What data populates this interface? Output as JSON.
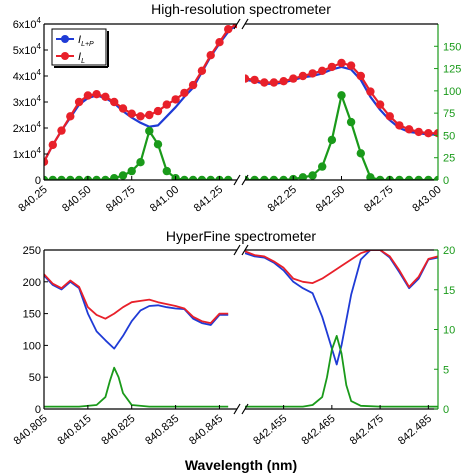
{
  "chart_data": [
    {
      "type": "line",
      "title": "High-resolution spectrometer",
      "xlabel": "",
      "ylabel": "",
      "y2label": "",
      "grid": false,
      "legend_position": "top-left",
      "legend": [
        {
          "label": "I",
          "sub": "L+P",
          "color": "#1f3bd6",
          "marker": "circle"
        },
        {
          "label": "I",
          "sub": "L",
          "color": "#e8202a",
          "marker": "circle"
        }
      ],
      "ylim": [
        0,
        60000
      ],
      "y2lim": [
        0,
        175
      ],
      "y_ticks": [
        {
          "v": 0,
          "label": "0"
        },
        {
          "v": 10000,
          "label": "1x10",
          "exp": "4"
        },
        {
          "v": 20000,
          "label": "2x10",
          "exp": "4"
        },
        {
          "v": 30000,
          "label": "3x10",
          "exp": "4"
        },
        {
          "v": 40000,
          "label": "4x10",
          "exp": "4"
        },
        {
          "v": 50000,
          "label": "5x10",
          "exp": "4"
        },
        {
          "v": 60000,
          "label": "6x10",
          "exp": "4"
        }
      ],
      "y2_ticks": [
        0,
        25,
        50,
        75,
        100,
        125,
        150
      ],
      "segments": [
        {
          "xlim": [
            840.25,
            841.35
          ],
          "x_ticks": [
            "840.25",
            "840.50",
            "840.75",
            "841.00",
            "841.25"
          ],
          "x_tick_values": [
            840.25,
            840.5,
            840.75,
            841.0,
            841.25
          ],
          "series": [
            {
              "name": "I_L+P",
              "color": "#1f3bd6",
              "axis": "left",
              "marker": "none",
              "x": [
                840.25,
                840.3,
                840.35,
                840.4,
                840.45,
                840.5,
                840.55,
                840.6,
                840.65,
                840.7,
                840.75,
                840.8,
                840.85,
                840.9,
                840.95,
                841.0,
                841.05,
                841.1,
                841.15,
                841.2,
                841.25,
                841.3,
                841.35
              ],
              "y": [
                7000,
                13500,
                19000,
                24000,
                29000,
                31500,
                32500,
                31500,
                29500,
                26500,
                24000,
                22000,
                20500,
                21000,
                24500,
                28000,
                32000,
                35500,
                41500,
                47500,
                52500,
                57000,
                60000
              ]
            },
            {
              "name": "I_L",
              "color": "#e8202a",
              "axis": "left",
              "marker": "circle",
              "x": [
                840.25,
                840.3,
                840.35,
                840.4,
                840.45,
                840.5,
                840.55,
                840.6,
                840.65,
                840.7,
                840.75,
                840.8,
                840.85,
                840.9,
                840.95,
                841.0,
                841.05,
                841.1,
                841.15,
                841.2,
                841.25,
                841.3,
                841.35
              ],
              "y": [
                7000,
                13500,
                19000,
                24500,
                30000,
                32500,
                33000,
                32000,
                30000,
                27500,
                25500,
                24500,
                25000,
                26500,
                29000,
                31000,
                33500,
                36500,
                42000,
                48000,
                53000,
                58000,
                60000
              ]
            },
            {
              "name": "",
              "color": "#1a9a1a",
              "axis": "right",
              "marker": "circle",
              "x": [
                840.25,
                840.3,
                840.35,
                840.4,
                840.45,
                840.5,
                840.55,
                840.6,
                840.65,
                840.7,
                840.75,
                840.8,
                840.85,
                840.9,
                840.95,
                841.0,
                841.05,
                841.1,
                841.15,
                841.2,
                841.25,
                841.3
              ],
              "y": [
                0,
                0,
                0,
                0,
                0,
                0,
                0,
                0,
                2,
                5,
                10,
                20,
                55,
                40,
                10,
                2,
                0,
                0,
                0,
                0,
                0,
                0
              ]
            }
          ]
        },
        {
          "xlim": [
            842.0,
            843.0
          ],
          "x_ticks": [
            "842.25",
            "842.50",
            "842.75",
            "843.00"
          ],
          "x_tick_values": [
            842.25,
            842.5,
            842.75,
            843.0
          ],
          "series": [
            {
              "name": "I_L+P",
              "color": "#1f3bd6",
              "axis": "left",
              "marker": "none",
              "x": [
                842.0,
                842.05,
                842.1,
                842.15,
                842.2,
                842.25,
                842.3,
                842.35,
                842.4,
                842.45,
                842.5,
                842.55,
                842.6,
                842.65,
                842.7,
                842.75,
                842.8,
                842.85,
                842.9,
                842.95,
                843.0
              ],
              "y": [
                38500,
                38000,
                37000,
                37000,
                37500,
                38500,
                39500,
                40000,
                41000,
                42500,
                43500,
                42500,
                38500,
                32000,
                27000,
                23000,
                20000,
                18500,
                18000,
                17500,
                17500
              ]
            },
            {
              "name": "I_L",
              "color": "#e8202a",
              "axis": "left",
              "marker": "circle",
              "x": [
                842.0,
                842.05,
                842.1,
                842.15,
                842.2,
                842.25,
                842.3,
                842.35,
                842.4,
                842.45,
                842.5,
                842.55,
                842.6,
                842.65,
                842.7,
                842.75,
                842.8,
                842.85,
                842.9,
                842.95,
                843.0
              ],
              "y": [
                39000,
                38500,
                37500,
                37500,
                38000,
                39000,
                40000,
                41000,
                42000,
                43500,
                45000,
                44000,
                40000,
                34000,
                29000,
                24500,
                21000,
                19500,
                18500,
                18000,
                18000
              ]
            },
            {
              "name": "",
              "color": "#1a9a1a",
              "axis": "right",
              "marker": "circle",
              "x": [
                842.0,
                842.05,
                842.1,
                842.15,
                842.2,
                842.25,
                842.3,
                842.35,
                842.4,
                842.45,
                842.5,
                842.55,
                842.6,
                842.65,
                842.7,
                842.75,
                842.8,
                842.85,
                842.9,
                842.95,
                843.0
              ],
              "y": [
                0,
                0,
                0,
                0,
                0,
                1,
                3,
                5,
                15,
                45,
                95,
                65,
                30,
                3,
                0,
                0,
                0,
                0,
                0,
                0,
                0
              ]
            }
          ]
        }
      ]
    },
    {
      "type": "line",
      "title": "HyperFine spectrometer",
      "xlabel": "Wavelength (nm)",
      "ylabel": "",
      "y2label": "",
      "grid": false,
      "ylim": [
        0,
        250
      ],
      "y2lim": [
        0,
        20
      ],
      "y_ticks": [
        {
          "v": 0,
          "label": "0"
        },
        {
          "v": 50,
          "label": "50"
        },
        {
          "v": 100,
          "label": "100"
        },
        {
          "v": 150,
          "label": "150"
        },
        {
          "v": 200,
          "label": "200"
        },
        {
          "v": 250,
          "label": "250"
        }
      ],
      "y2_ticks": [
        0,
        5,
        10,
        15,
        20
      ],
      "segments": [
        {
          "xlim": [
            840.805,
            840.849
          ],
          "x_ticks": [
            "840.805",
            "840.815",
            "840.825",
            "840.835",
            "840.845"
          ],
          "x_tick_values": [
            840.805,
            840.815,
            840.825,
            840.835,
            840.845
          ],
          "series": [
            {
              "name": "I_L+P",
              "color": "#1f3bd6",
              "axis": "left",
              "marker": "none",
              "x": [
                840.805,
                840.807,
                840.809,
                840.811,
                840.813,
                840.815,
                840.817,
                840.819,
                840.821,
                840.823,
                840.825,
                840.827,
                840.829,
                840.831,
                840.833,
                840.835,
                840.837,
                840.839,
                840.841,
                840.843,
                840.845,
                840.847
              ],
              "y": [
                210,
                195,
                188,
                200,
                190,
                150,
                122,
                108,
                95,
                115,
                138,
                155,
                162,
                163,
                160,
                158,
                157,
                142,
                135,
                132,
                148,
                148
              ]
            },
            {
              "name": "I_L",
              "color": "#e8202a",
              "axis": "left",
              "marker": "none",
              "x": [
                840.805,
                840.807,
                840.809,
                840.811,
                840.813,
                840.815,
                840.817,
                840.819,
                840.821,
                840.823,
                840.825,
                840.827,
                840.829,
                840.831,
                840.833,
                840.835,
                840.837,
                840.839,
                840.841,
                840.843,
                840.845,
                840.847
              ],
              "y": [
                212,
                197,
                190,
                202,
                192,
                160,
                148,
                142,
                150,
                160,
                168,
                170,
                172,
                168,
                165,
                162,
                158,
                145,
                138,
                135,
                150,
                150
              ]
            },
            {
              "name": "",
              "color": "#1a9a1a",
              "axis": "right",
              "marker": "none",
              "x": [
                840.805,
                840.809,
                840.813,
                840.817,
                840.819,
                840.82,
                840.821,
                840.822,
                840.823,
                840.825,
                840.829,
                840.833,
                840.837,
                840.841,
                840.845,
                840.847
              ],
              "y": [
                0.3,
                0.3,
                0.3,
                0.5,
                1.5,
                3.5,
                5.2,
                4.0,
                2.0,
                0.5,
                0.3,
                0.3,
                0.3,
                0.3,
                0.3,
                0.3
              ]
            }
          ]
        },
        {
          "xlim": [
            842.447,
            842.487
          ],
          "x_ticks": [
            "842.455",
            "842.465",
            "842.475",
            "842.485"
          ],
          "x_tick_values": [
            842.455,
            842.465,
            842.475,
            842.485
          ],
          "series": [
            {
              "name": "I_L+P",
              "color": "#1f3bd6",
              "axis": "left",
              "marker": "none",
              "x": [
                842.447,
                842.449,
                842.451,
                842.453,
                842.455,
                842.457,
                842.459,
                842.461,
                842.463,
                842.465,
                842.466,
                842.467,
                842.469,
                842.471,
                842.473,
                842.475,
                842.477,
                842.479,
                842.481,
                842.483,
                842.485,
                842.487
              ],
              "y": [
                245,
                240,
                238,
                230,
                218,
                200,
                190,
                182,
                145,
                95,
                70,
                100,
                180,
                235,
                250,
                250,
                238,
                215,
                190,
                205,
                235,
                238
              ]
            },
            {
              "name": "I_L",
              "color": "#e8202a",
              "axis": "left",
              "marker": "none",
              "x": [
                842.447,
                842.449,
                842.451,
                842.453,
                842.455,
                842.457,
                842.459,
                842.461,
                842.463,
                842.465,
                842.467,
                842.469,
                842.471,
                842.473,
                842.475,
                842.477,
                842.479,
                842.481,
                842.483,
                842.485,
                842.487
              ],
              "y": [
                248,
                242,
                240,
                232,
                222,
                205,
                200,
                198,
                205,
                215,
                225,
                235,
                245,
                250,
                250,
                240,
                218,
                192,
                208,
                236,
                240
              ]
            },
            {
              "name": "",
              "color": "#1a9a1a",
              "axis": "right",
              "marker": "none",
              "x": [
                842.447,
                842.451,
                842.455,
                842.459,
                842.461,
                842.463,
                842.464,
                842.465,
                842.466,
                842.467,
                842.468,
                842.469,
                842.471,
                842.475,
                842.479,
                842.483,
                842.487
              ],
              "y": [
                0.3,
                0.3,
                0.3,
                0.3,
                0.5,
                1.5,
                4.0,
                7.5,
                9.2,
                7.0,
                3.0,
                1.0,
                0.4,
                0.3,
                0.3,
                0.3,
                0.3
              ]
            }
          ]
        }
      ]
    }
  ]
}
